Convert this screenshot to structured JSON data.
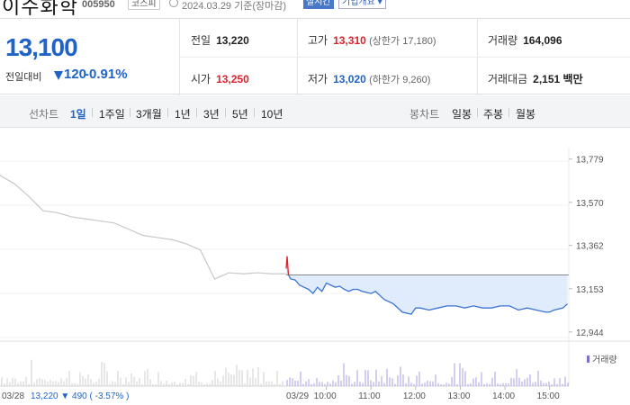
{
  "header": {
    "stock_name": "이수화학",
    "stock_code": "005950",
    "market": "코스피",
    "date_basis": "2024.03.29  기준(장마감)",
    "realtime_label": "실시간",
    "corp_info_label": "기업개요 ▾"
  },
  "quote": {
    "current_price": "13,100",
    "change_label": "전일대비",
    "change_value": "120",
    "change_percent": "-0.91%",
    "prev_close_label": "전일",
    "prev_close": "13,220",
    "high_label": "고가",
    "high": "13,310",
    "upper_limit": "(상한가 17,180)",
    "volume_label": "거래량",
    "volume": "164,096",
    "open_label": "시가",
    "open": "13,250",
    "low_label": "저가",
    "low": "13,020",
    "lower_limit": "(하한가 9,260)",
    "amount_label": "거래대금",
    "amount": "2,151 백만"
  },
  "range_tabs": {
    "line_chart_label": "선차트",
    "line_items": [
      "1일",
      "1주일",
      "3개월",
      "1년",
      "3년",
      "5년",
      "10년"
    ],
    "active_index": 0,
    "candle_chart_label": "봉차트",
    "candle_items": [
      "일봉",
      "주봉",
      "월봉"
    ]
  },
  "colors": {
    "accent": "#1f63c6",
    "up": "#e0202b",
    "down": "#1f63c6",
    "fill": "#dde9fb"
  },
  "chart_data": {
    "type": "line",
    "y_ticks": [
      "13,779",
      "13,570",
      "13,362",
      "13,153",
      "12,944"
    ],
    "y_tick_values": [
      13779,
      13570,
      13362,
      13153,
      12944
    ],
    "ylim": [
      12900,
      13830
    ],
    "reference_price": 13220,
    "prev_day": {
      "label": "03/28",
      "summary": "13,220 ▼ 490 ( -3.57% )",
      "x": [
        0,
        5,
        10,
        15,
        20,
        25,
        30,
        35,
        40,
        45,
        50,
        55,
        60,
        65,
        70,
        75,
        80,
        85,
        90,
        95,
        100
      ],
      "values": [
        13700,
        13660,
        13600,
        13530,
        13520,
        13500,
        13490,
        13480,
        13470,
        13440,
        13410,
        13400,
        13390,
        13370,
        13340,
        13200,
        13230,
        13225,
        13230,
        13225,
        13225
      ]
    },
    "today": {
      "label": "03/29",
      "x_ticks": [
        "10:00",
        "11:00",
        "12:00",
        "13:00",
        "14:00",
        "15:00"
      ],
      "x_tick_values": [
        9.9,
        10.9,
        11.9,
        12.9,
        13.9,
        14.9
      ],
      "xlim": [
        9.0,
        15.33
      ],
      "x": [
        9.0,
        9.02,
        9.05,
        9.1,
        9.2,
        9.3,
        9.4,
        9.5,
        9.6,
        9.7,
        9.8,
        9.9,
        10.0,
        10.1,
        10.2,
        10.3,
        10.4,
        10.5,
        10.6,
        10.7,
        10.8,
        10.9,
        11.0,
        11.2,
        11.4,
        11.6,
        11.8,
        11.9,
        12.0,
        12.2,
        12.4,
        12.6,
        12.8,
        13.0,
        13.2,
        13.4,
        13.6,
        13.8,
        14.0,
        14.2,
        14.4,
        14.6,
        14.8,
        14.9,
        15.0,
        15.2,
        15.3
      ],
      "values": [
        13250,
        13310,
        13220,
        13200,
        13195,
        13170,
        13160,
        13150,
        13130,
        13160,
        13140,
        13180,
        13170,
        13160,
        13165,
        13150,
        13140,
        13150,
        13150,
        13140,
        13135,
        13130,
        13140,
        13100,
        13080,
        13040,
        13030,
        13060,
        13060,
        13050,
        13060,
        13070,
        13070,
        13060,
        13070,
        13060,
        13060,
        13070,
        13070,
        13050,
        13060,
        13050,
        13040,
        13040,
        13050,
        13060,
        13080
      ]
    },
    "volume_legend": "거래량"
  }
}
